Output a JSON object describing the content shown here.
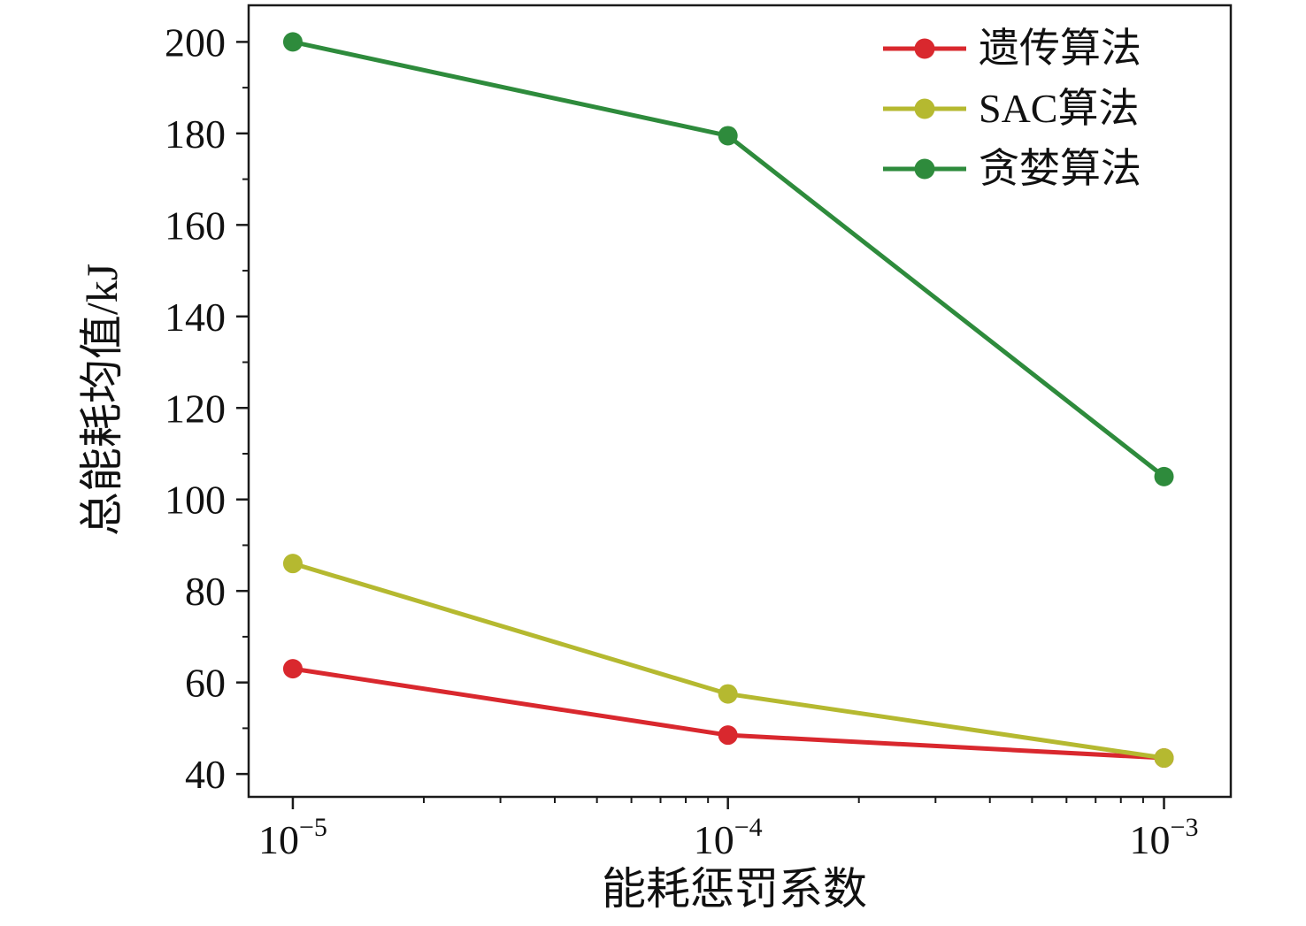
{
  "chart_data": {
    "type": "line",
    "title": "",
    "xlabel": "能耗惩罚系数",
    "ylabel": "总能耗均值/kJ",
    "x_scale": "log",
    "x_values": [
      1e-05,
      0.0001,
      0.001
    ],
    "x_tick_labels": [
      {
        "base": "10",
        "exp": "−5"
      },
      {
        "base": "10",
        "exp": "−4"
      },
      {
        "base": "10",
        "exp": "−3"
      }
    ],
    "y_ticks": [
      40,
      60,
      80,
      100,
      120,
      140,
      160,
      180,
      200
    ],
    "ylim": [
      35,
      208
    ],
    "grid": false,
    "legend_position": "top-right",
    "frame_color": "#1a1a1a",
    "series": [
      {
        "name": "遗传算法",
        "color": "#d9282e",
        "values": [
          63,
          48.5,
          43.5
        ]
      },
      {
        "name": "SAC算法",
        "color": "#b5b930",
        "values": [
          86,
          57.5,
          43.5
        ]
      },
      {
        "name": "贪婪算法",
        "color": "#2e8b3c",
        "values": [
          200,
          179.5,
          105
        ]
      }
    ]
  }
}
